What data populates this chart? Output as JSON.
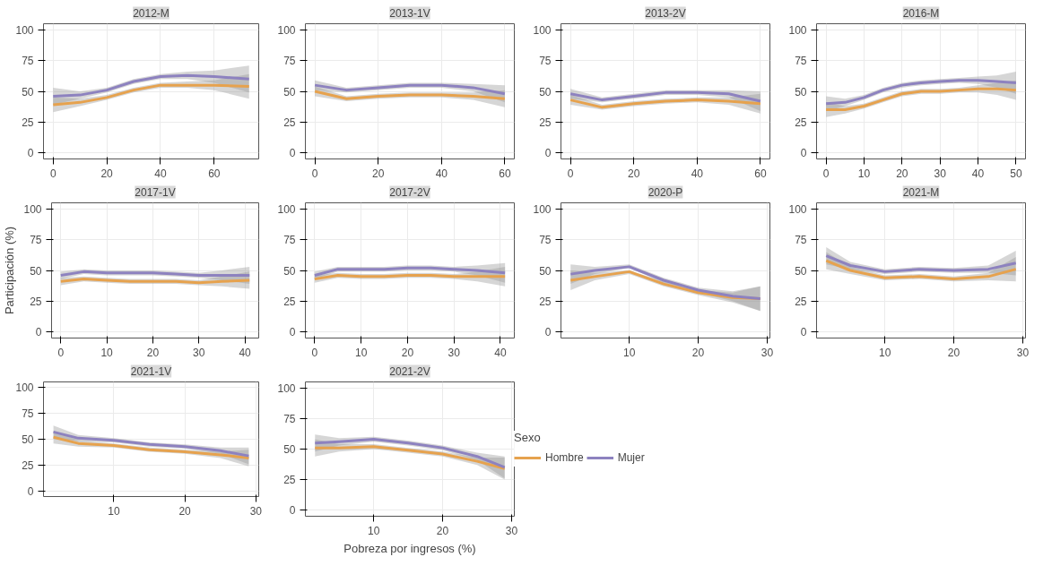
{
  "chart_data": [
    {
      "type": "line",
      "title": "2012-M",
      "x": [
        0,
        10,
        20,
        30,
        40,
        50,
        60,
        73
      ],
      "xlim": [
        -3.6,
        76.6
      ],
      "xticks": [
        0,
        20,
        40,
        60
      ],
      "ylim": [
        -5,
        105
      ],
      "yticks": [
        0,
        25,
        50,
        75,
        100
      ],
      "grid": true,
      "series": [
        {
          "color": "#e6a24e",
          "values": [
            39,
            41,
            45,
            51,
            55,
            55,
            55,
            54
          ],
          "lower": [
            33,
            38,
            43,
            49,
            53,
            53,
            51,
            44
          ],
          "upper": [
            45,
            44,
            47,
            53,
            57,
            58,
            59,
            64
          ]
        },
        {
          "color": "#8d82bf",
          "values": [
            46,
            47,
            51,
            58,
            62,
            63,
            62,
            60
          ],
          "lower": [
            39,
            44,
            49,
            56,
            60,
            60,
            57,
            49
          ],
          "upper": [
            53,
            50,
            53,
            60,
            64,
            66,
            67,
            71
          ]
        }
      ]
    },
    {
      "type": "line",
      "title": "2013-1V",
      "x": [
        0,
        10,
        20,
        30,
        40,
        50,
        60
      ],
      "xlim": [
        -3,
        63
      ],
      "xticks": [
        0,
        20,
        40,
        60
      ],
      "ylim": [
        -5,
        105
      ],
      "yticks": [
        0,
        25,
        50,
        75,
        100
      ],
      "grid": true,
      "series": [
        {
          "color": "#e6a24e",
          "values": [
            50,
            44,
            46,
            47,
            47,
            46,
            44
          ],
          "lower": [
            46,
            42,
            44,
            45,
            45,
            43,
            37
          ],
          "upper": [
            54,
            46,
            48,
            49,
            49,
            49,
            51
          ]
        },
        {
          "color": "#8d82bf",
          "values": [
            55,
            51,
            53,
            55,
            55,
            53,
            48
          ],
          "lower": [
            51,
            49,
            51,
            53,
            53,
            50,
            41
          ],
          "upper": [
            59,
            53,
            55,
            57,
            57,
            56,
            55
          ]
        }
      ]
    },
    {
      "type": "line",
      "title": "2013-2V",
      "x": [
        0,
        10,
        20,
        30,
        40,
        50,
        60
      ],
      "xlim": [
        -3,
        63
      ],
      "xticks": [
        0,
        20,
        40,
        60
      ],
      "ylim": [
        -5,
        105
      ],
      "yticks": [
        0,
        25,
        50,
        75,
        100
      ],
      "grid": true,
      "series": [
        {
          "color": "#e6a24e",
          "values": [
            43,
            37,
            40,
            42,
            43,
            42,
            40
          ],
          "lower": [
            39,
            35,
            38,
            40,
            41,
            39,
            32
          ],
          "upper": [
            47,
            39,
            42,
            44,
            45,
            45,
            48
          ]
        },
        {
          "color": "#8d82bf",
          "values": [
            48,
            43,
            46,
            49,
            49,
            48,
            42
          ],
          "lower": [
            44,
            41,
            44,
            47,
            47,
            45,
            34
          ],
          "upper": [
            52,
            45,
            48,
            51,
            51,
            51,
            50
          ]
        }
      ]
    },
    {
      "type": "line",
      "title": "2016-M",
      "x": [
        0,
        5,
        10,
        15,
        20,
        25,
        30,
        35,
        40,
        45,
        50
      ],
      "xlim": [
        -2.5,
        52.5
      ],
      "xticks": [
        0,
        10,
        20,
        30,
        40,
        50
      ],
      "ylim": [
        -5,
        105
      ],
      "yticks": [
        0,
        25,
        50,
        75,
        100
      ],
      "grid": true,
      "series": [
        {
          "color": "#e6a24e",
          "values": [
            35,
            35,
            38,
            43,
            48,
            50,
            50,
            51,
            52,
            52,
            51
          ],
          "lower": [
            29,
            32,
            36,
            41,
            46,
            48,
            48,
            49,
            49,
            47,
            43
          ],
          "upper": [
            41,
            38,
            40,
            45,
            50,
            52,
            52,
            53,
            55,
            57,
            59
          ]
        },
        {
          "color": "#8d82bf",
          "values": [
            40,
            41,
            45,
            51,
            55,
            57,
            58,
            59,
            59,
            58,
            57
          ],
          "lower": [
            34,
            38,
            43,
            49,
            53,
            55,
            56,
            57,
            56,
            53,
            48
          ],
          "upper": [
            46,
            44,
            47,
            53,
            57,
            59,
            60,
            61,
            62,
            63,
            66
          ]
        }
      ]
    },
    {
      "type": "line",
      "title": "2017-1V",
      "ylabel": "Participación (%)",
      "x": [
        0,
        5,
        10,
        15,
        20,
        25,
        30,
        35,
        41
      ],
      "xlim": [
        -2,
        43
      ],
      "xticks": [
        0,
        10,
        20,
        30,
        40
      ],
      "ylim": [
        -5,
        105
      ],
      "yticks": [
        0,
        25,
        50,
        75,
        100
      ],
      "grid": true,
      "series": [
        {
          "color": "#e6a24e",
          "values": [
            41,
            43,
            42,
            41,
            41,
            41,
            40,
            41,
            42
          ],
          "lower": [
            38,
            41,
            40,
            39,
            39,
            39,
            38,
            37,
            35
          ],
          "upper": [
            44,
            45,
            44,
            43,
            43,
            43,
            42,
            45,
            49
          ]
        },
        {
          "color": "#8d82bf",
          "values": [
            46,
            49,
            48,
            48,
            48,
            47,
            46,
            46,
            46
          ],
          "lower": [
            43,
            47,
            46,
            46,
            46,
            45,
            44,
            42,
            39
          ],
          "upper": [
            49,
            51,
            50,
            50,
            50,
            49,
            48,
            50,
            53
          ]
        }
      ]
    },
    {
      "type": "line",
      "title": "2017-2V",
      "x": [
        0,
        5,
        10,
        15,
        20,
        25,
        30,
        35,
        41
      ],
      "xlim": [
        -2,
        43
      ],
      "xticks": [
        0,
        10,
        20,
        30,
        40
      ],
      "ylim": [
        -5,
        105
      ],
      "yticks": [
        0,
        25,
        50,
        75,
        100
      ],
      "grid": true,
      "series": [
        {
          "color": "#e6a24e",
          "values": [
            43,
            46,
            45,
            45,
            46,
            46,
            45,
            45,
            45
          ],
          "lower": [
            40,
            44,
            43,
            43,
            44,
            44,
            43,
            41,
            37
          ],
          "upper": [
            46,
            48,
            47,
            47,
            48,
            48,
            47,
            49,
            53
          ]
        },
        {
          "color": "#8d82bf",
          "values": [
            46,
            51,
            51,
            51,
            52,
            52,
            51,
            50,
            48
          ],
          "lower": [
            43,
            49,
            49,
            49,
            50,
            50,
            49,
            46,
            40
          ],
          "upper": [
            49,
            53,
            53,
            53,
            54,
            54,
            53,
            54,
            56
          ]
        }
      ]
    },
    {
      "type": "line",
      "title": "2020-P",
      "x": [
        1.5,
        5,
        10,
        15,
        20,
        25,
        29
      ],
      "xlim": [
        0.1,
        30.4
      ],
      "xticks": [
        10,
        20,
        30
      ],
      "ylim": [
        -5,
        105
      ],
      "yticks": [
        0,
        25,
        50,
        75,
        100
      ],
      "grid": true,
      "series": [
        {
          "color": "#e6a24e",
          "values": [
            42,
            45,
            49,
            39,
            32,
            28,
            27
          ],
          "lower": [
            34,
            42,
            47,
            37,
            30,
            24,
            17
          ],
          "upper": [
            50,
            48,
            50,
            41,
            34,
            32,
            37
          ]
        },
        {
          "color": "#8d82bf",
          "values": [
            47,
            50,
            53,
            42,
            34,
            29,
            27
          ],
          "lower": [
            39,
            47,
            52,
            40,
            32,
            25,
            17
          ],
          "upper": [
            55,
            53,
            55,
            44,
            36,
            33,
            37
          ]
        }
      ]
    },
    {
      "type": "line",
      "title": "2021-M",
      "x": [
        1.5,
        5,
        10,
        15,
        20,
        25,
        29
      ],
      "xlim": [
        0.1,
        30.4
      ],
      "xticks": [
        10,
        20,
        30
      ],
      "ylim": [
        -5,
        105
      ],
      "yticks": [
        0,
        25,
        50,
        75,
        100
      ],
      "grid": true,
      "series": [
        {
          "color": "#e6a24e",
          "values": [
            58,
            50,
            44,
            45,
            43,
            45,
            51
          ],
          "lower": [
            51,
            47,
            42,
            43,
            41,
            42,
            41
          ],
          "upper": [
            65,
            53,
            46,
            47,
            45,
            48,
            61
          ]
        },
        {
          "color": "#8d82bf",
          "values": [
            62,
            54,
            49,
            51,
            50,
            51,
            56
          ],
          "lower": [
            55,
            51,
            47,
            49,
            48,
            48,
            46
          ],
          "upper": [
            69,
            57,
            51,
            53,
            52,
            54,
            66
          ]
        }
      ]
    },
    {
      "type": "line",
      "title": "2021-1V",
      "x": [
        1.5,
        5,
        10,
        15,
        20,
        25,
        29
      ],
      "xlim": [
        0.1,
        30.4
      ],
      "xticks": [
        10,
        20,
        30
      ],
      "ylim": [
        -5,
        105
      ],
      "yticks": [
        0,
        25,
        50,
        75,
        100
      ],
      "grid": true,
      "series": [
        {
          "color": "#e6a24e",
          "values": [
            52,
            46,
            44,
            40,
            38,
            35,
            32
          ],
          "lower": [
            46,
            43,
            42,
            38,
            36,
            32,
            24
          ],
          "upper": [
            58,
            49,
            46,
            42,
            40,
            38,
            40
          ]
        },
        {
          "color": "#8d82bf",
          "values": [
            57,
            51,
            49,
            45,
            43,
            39,
            34
          ],
          "lower": [
            51,
            48,
            47,
            43,
            41,
            36,
            26
          ],
          "upper": [
            63,
            54,
            51,
            47,
            45,
            42,
            42
          ]
        }
      ]
    },
    {
      "type": "line",
      "title": "2021-2V",
      "xlabel": "Pobreza por ingresos (%)",
      "legend_title": "Sexo",
      "legend": "right",
      "x": [
        1.5,
        5,
        10,
        15,
        20,
        25,
        29
      ],
      "xlim": [
        0.1,
        30.4
      ],
      "xticks": [
        10,
        20,
        30
      ],
      "ylim": [
        -5,
        105
      ],
      "yticks": [
        0,
        25,
        50,
        75,
        100
      ],
      "grid": true,
      "series": [
        {
          "name": "Hombre",
          "color": "#e6a24e",
          "values": [
            51,
            51,
            52,
            49,
            46,
            40,
            34
          ],
          "lower": [
            44,
            48,
            50,
            47,
            44,
            37,
            25
          ],
          "upper": [
            58,
            54,
            54,
            51,
            48,
            43,
            43
          ]
        },
        {
          "name": "Mujer",
          "color": "#8d82bf",
          "values": [
            55,
            56,
            58,
            55,
            51,
            44,
            35
          ],
          "lower": [
            48,
            53,
            56,
            53,
            49,
            41,
            26
          ],
          "upper": [
            62,
            59,
            60,
            57,
            53,
            47,
            44
          ]
        }
      ]
    }
  ]
}
